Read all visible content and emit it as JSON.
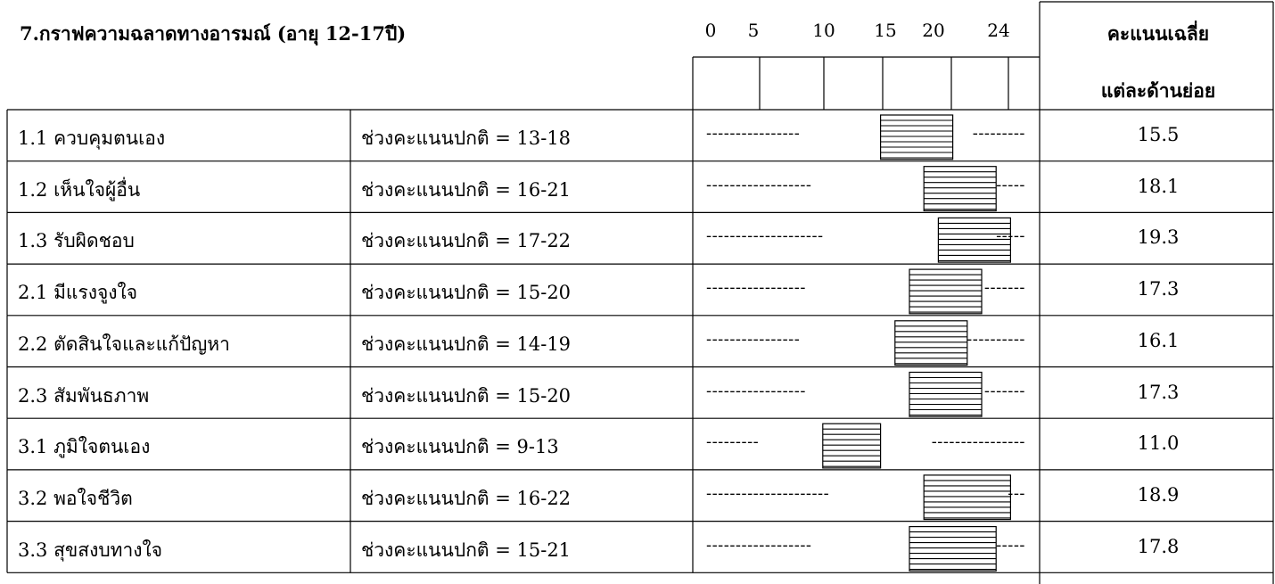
{
  "chart_data": {
    "type": "table",
    "title": "7.กราฟความฉลาดทางอารมณ์ (อายุ 12-17ปี)",
    "scale_ticks": [
      "0",
      "5",
      "10",
      "15",
      "20",
      "24"
    ],
    "score_header": [
      "คะแนนเฉลี่ย",
      "แต่ละด้านย่อย"
    ],
    "rows": [
      {
        "item": "1.1  ควบคุมตนเอง",
        "range_text": "ช่วงคะแนนปกติ = 13-18",
        "range": [
          13,
          18
        ],
        "score": "15.5",
        "dash_left": "----------------",
        "dash_right": "---------"
      },
      {
        "item": "1.2  เห็นใจผู้อื่น",
        "range_text": "ช่วงคะแนนปกติ = 16-21",
        "range": [
          16,
          21
        ],
        "score": "18.1",
        "dash_left": "------------------",
        "dash_right": "-----"
      },
      {
        "item": "1.3  รับผิดชอบ",
        "range_text": "ช่วงคะแนนปกติ = 17-22",
        "range": [
          17,
          22
        ],
        "score": "19.3",
        "dash_left": "--------------------",
        "dash_right": "-----"
      },
      {
        "item": "2.1  มีแรงจูงใจ",
        "range_text": "ช่วงคะแนนปกติ = 15-20",
        "range": [
          15,
          20
        ],
        "score": "17.3",
        "dash_left": "-----------------",
        "dash_right": "-------"
      },
      {
        "item": "2.2  ตัดสินใจและแก้ปัญหา",
        "range_text": "ช่วงคะแนนปกติ = 14-19",
        "range": [
          14,
          19
        ],
        "score": "16.1",
        "dash_left": "----------------",
        "dash_right": "----------"
      },
      {
        "item": "2.3  สัมพันธภาพ",
        "range_text": "ช่วงคะแนนปกติ = 15-20",
        "range": [
          15,
          20
        ],
        "score": "17.3",
        "dash_left": "-----------------",
        "dash_right": "-------"
      },
      {
        "item": "3.1  ภูมิใจตนเอง",
        "range_text": "ช่วงคะแนนปกติ = 9-13",
        "range": [
          9,
          13
        ],
        "score": "11.0",
        "dash_left": "---------",
        "dash_right": "----------------"
      },
      {
        "item": "3.2  พอใจชีวิต",
        "range_text": "ช่วงคะแนนปกติ = 16-22",
        "range": [
          16,
          22
        ],
        "score": "18.9",
        "dash_left": "---------------------",
        "dash_right": "---"
      },
      {
        "item": "3.3  สุขสงบทางใจ",
        "range_text": "ช่วงคะแนนปกติ = 15-21",
        "range": [
          15,
          21
        ],
        "score": "17.8",
        "dash_left": "------------------",
        "dash_right": "-----"
      }
    ]
  }
}
